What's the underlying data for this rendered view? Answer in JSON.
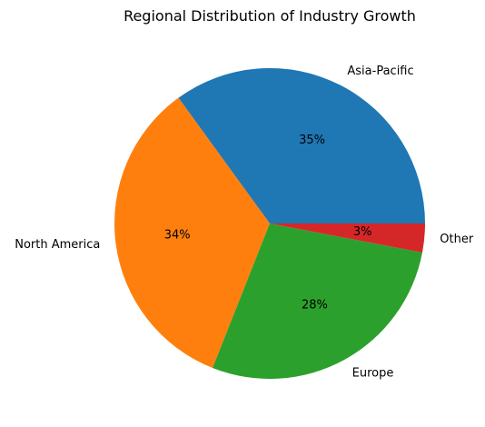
{
  "chart_data": {
    "type": "pie",
    "title": "Regional Distribution of Industry Growth",
    "slices": [
      {
        "label": "Asia-Pacific",
        "value": 35,
        "percent_label": "35%",
        "color": "#1f77b4"
      },
      {
        "label": "North America",
        "value": 34,
        "percent_label": "34%",
        "color": "#ff7f0e"
      },
      {
        "label": "Europe",
        "value": 28,
        "percent_label": "28%",
        "color": "#2ca02c"
      },
      {
        "label": "Other",
        "value": 3,
        "percent_label": "3%",
        "color": "#d62728"
      }
    ],
    "start_angle_deg": 0,
    "direction": "counterclockwise",
    "legend": "none"
  }
}
